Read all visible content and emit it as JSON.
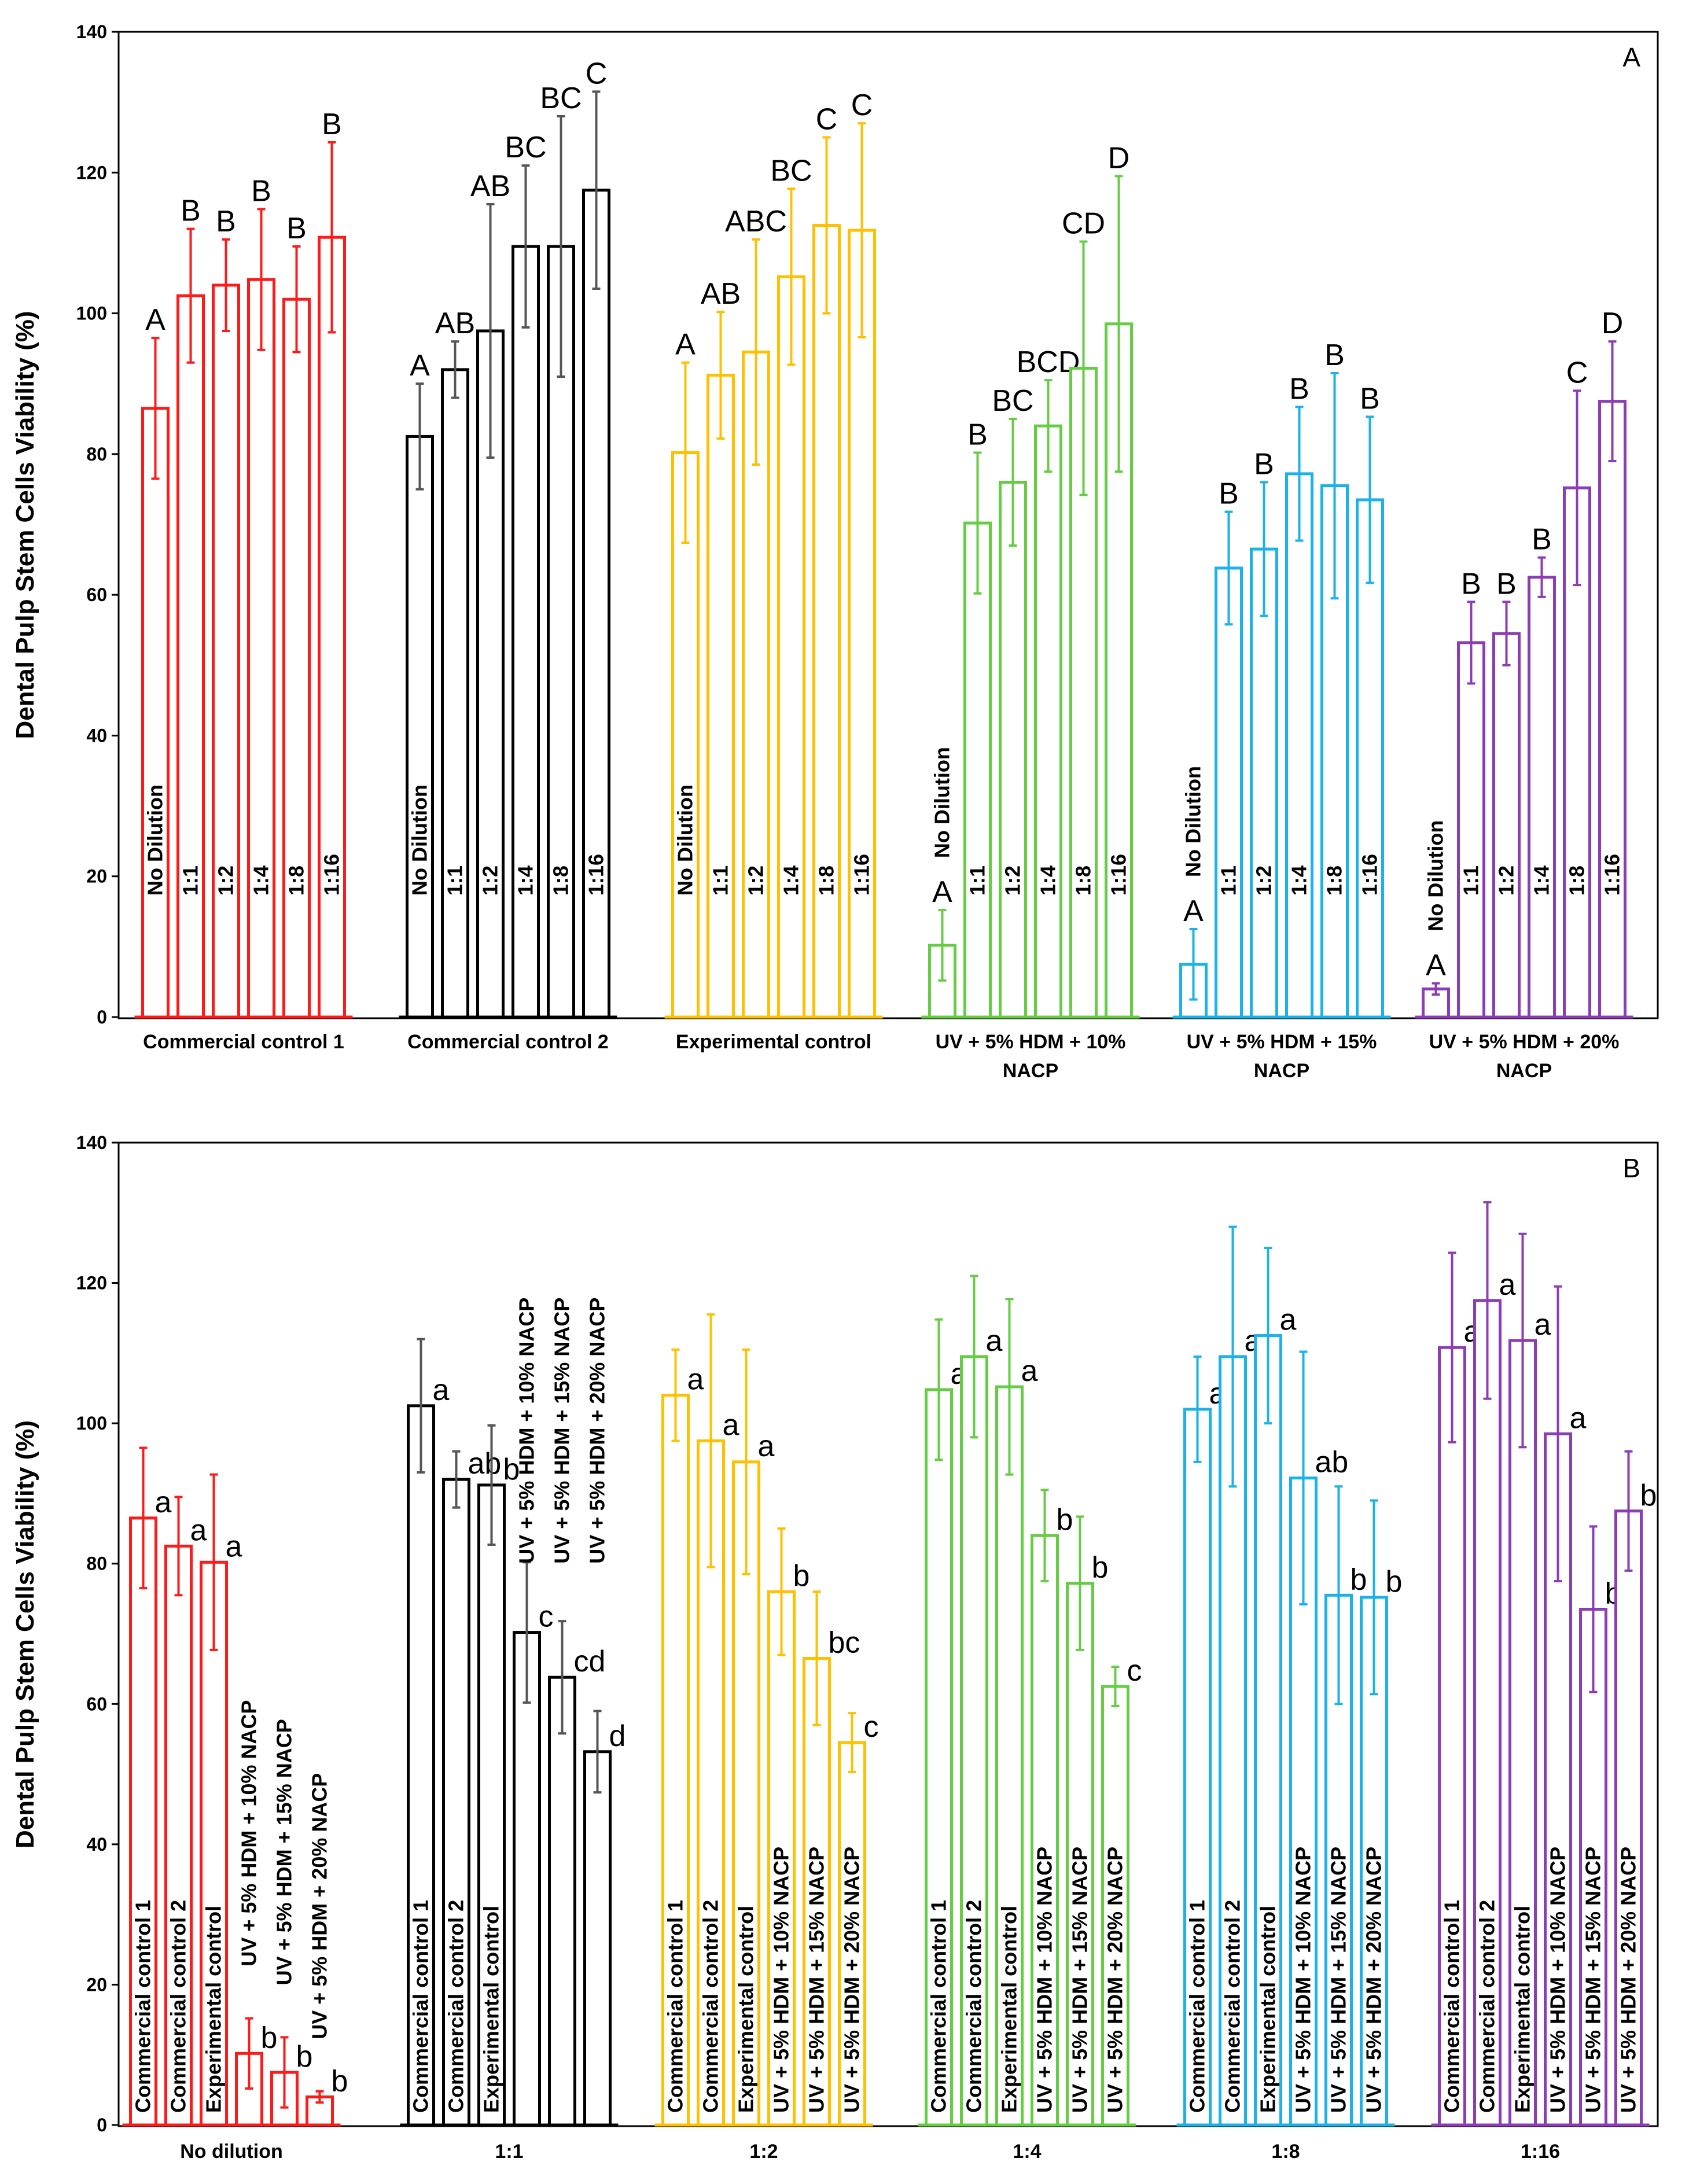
{
  "colors": {
    "red": "#ff1a1a",
    "black": "#000000",
    "black_err": "#555555",
    "yellow": "#ffc000",
    "green": "#66cc44",
    "blue": "#1ab2e8",
    "purple": "#8c3cb4"
  },
  "chart_data": [
    {
      "type": "bar",
      "panel_label": "A",
      "ylabel": "Dental Pulp Stem Cells Viability (%)",
      "ylim": [
        0,
        140
      ],
      "yticks": [
        "0",
        "20",
        "40",
        "60",
        "80",
        "100",
        "120",
        "140"
      ],
      "groups": [
        {
          "label_lines": [
            "Commercial control 1"
          ],
          "color_key": "red",
          "bars": [
            {
              "label": "No Dilution",
              "value": 86.5,
              "err": 10,
              "sig": "A"
            },
            {
              "label": "1:1",
              "value": 102.5,
              "err": 9.5,
              "sig": "B"
            },
            {
              "label": "1:2",
              "value": 104,
              "err": 6.5,
              "sig": "B"
            },
            {
              "label": "1:4",
              "value": 104.8,
              "err": 10,
              "sig": "B"
            },
            {
              "label": "1:8",
              "value": 102,
              "err": 7.5,
              "sig": "B"
            },
            {
              "label": "1:16",
              "value": 110.8,
              "err": 13.5,
              "sig": "B"
            }
          ]
        },
        {
          "label_lines": [
            "Commercial control 2"
          ],
          "color_key": "black",
          "bars": [
            {
              "label": "No Dilution",
              "value": 82.5,
              "err": 7.5,
              "sig": "A"
            },
            {
              "label": "1:1",
              "value": 92,
              "err": 4,
              "sig": "AB"
            },
            {
              "label": "1:2",
              "value": 97.5,
              "err": 18,
              "sig": "AB"
            },
            {
              "label": "1:4",
              "value": 109.5,
              "err": 11.5,
              "sig": "BC"
            },
            {
              "label": "1:8",
              "value": 109.5,
              "err": 18.5,
              "sig": "BC"
            },
            {
              "label": "1:16",
              "value": 117.5,
              "err": 14,
              "sig": "C"
            }
          ]
        },
        {
          "label_lines": [
            "Experimental control"
          ],
          "color_key": "yellow",
          "bars": [
            {
              "label": "No Dilution",
              "value": 80.2,
              "err": 12.8,
              "sig": "A"
            },
            {
              "label": "1:1",
              "value": 91.2,
              "err": 9,
              "sig": "AB"
            },
            {
              "label": "1:2",
              "value": 94.5,
              "err": 16,
              "sig": "ABC"
            },
            {
              "label": "1:4",
              "value": 105.2,
              "err": 12.5,
              "sig": "BC"
            },
            {
              "label": "1:8",
              "value": 112.5,
              "err": 12.5,
              "sig": "C"
            },
            {
              "label": "1:16",
              "value": 111.8,
              "err": 15.2,
              "sig": "C"
            }
          ]
        },
        {
          "label_lines": [
            "UV + 5% HDM + 10%",
            "NACP"
          ],
          "color_key": "green",
          "bars": [
            {
              "label": "No Dilution",
              "value": 10.2,
              "err": 5,
              "sig": "A"
            },
            {
              "label": "1:1",
              "value": 70.2,
              "err": 10,
              "sig": "B"
            },
            {
              "label": "1:2",
              "value": 76,
              "err": 9,
              "sig": "BC"
            },
            {
              "label": "1:4",
              "value": 84,
              "err": 6.5,
              "sig": "BCD"
            },
            {
              "label": "1:8",
              "value": 92.2,
              "err": 18,
              "sig": "CD"
            },
            {
              "label": "1:16",
              "value": 98.5,
              "err": 21,
              "sig": "D"
            }
          ]
        },
        {
          "label_lines": [
            "UV + 5% HDM + 15%",
            "NACP"
          ],
          "color_key": "blue",
          "bars": [
            {
              "label": "No Dilution",
              "value": 7.5,
              "err": 5,
              "sig": "A"
            },
            {
              "label": "1:1",
              "value": 63.8,
              "err": 8,
              "sig": "B"
            },
            {
              "label": "1:2",
              "value": 66.5,
              "err": 9.5,
              "sig": "B"
            },
            {
              "label": "1:4",
              "value": 77.2,
              "err": 9.5,
              "sig": "B"
            },
            {
              "label": "1:8",
              "value": 75.5,
              "err": 16,
              "sig": "B"
            },
            {
              "label": "1:16",
              "value": 73.5,
              "err": 11.8,
              "sig": "B"
            }
          ]
        },
        {
          "label_lines": [
            "UV + 5% HDM + 20%",
            "NACP"
          ],
          "color_key": "purple",
          "bars": [
            {
              "label": "No Dilution",
              "value": 4,
              "err": 0.8,
              "sig": "A"
            },
            {
              "label": "1:1",
              "value": 53.2,
              "err": 5.8,
              "sig": "B"
            },
            {
              "label": "1:2",
              "value": 54.5,
              "err": 4.5,
              "sig": "B"
            },
            {
              "label": "1:4",
              "value": 62.5,
              "err": 2.8,
              "sig": "B"
            },
            {
              "label": "1:8",
              "value": 75.2,
              "err": 13.8,
              "sig": "C"
            },
            {
              "label": "1:16",
              "value": 87.5,
              "err": 8.5,
              "sig": "D"
            }
          ]
        }
      ]
    },
    {
      "type": "bar",
      "panel_label": "B",
      "ylabel": "Dental Pulp Stem Cells Viability (%)",
      "ylim": [
        0,
        140
      ],
      "yticks": [
        "0",
        "20",
        "40",
        "60",
        "80",
        "100",
        "120",
        "140"
      ],
      "groups": [
        {
          "label_lines": [
            "No dilution"
          ],
          "color_key": "red",
          "bars": [
            {
              "label": "Commercial control 1",
              "value": 86.5,
              "err": 10,
              "sig": "a"
            },
            {
              "label": "Commercial control 2",
              "value": 82.5,
              "err": 7,
              "sig": "a"
            },
            {
              "label": "Experimental control",
              "value": 80.2,
              "err": 12.5,
              "sig": "a"
            },
            {
              "label": "UV + 5% HDM + 10% NACP",
              "value": 10.2,
              "err": 5,
              "sig": "b"
            },
            {
              "label": "UV + 5% HDM + 15% NACP",
              "value": 7.5,
              "err": 5,
              "sig": "b"
            },
            {
              "label": "UV + 5% HDM + 20% NACP",
              "value": 4,
              "err": 0.8,
              "sig": "b"
            }
          ]
        },
        {
          "label_lines": [
            "1:1"
          ],
          "color_key": "black",
          "bars": [
            {
              "label": "Commercial control 1",
              "value": 102.5,
              "err": 9.5,
              "sig": "a"
            },
            {
              "label": "Commercial control 2",
              "value": 92,
              "err": 4,
              "sig": "ab"
            },
            {
              "label": "Experimental control",
              "value": 91.2,
              "err": 8.5,
              "sig": "b"
            },
            {
              "label": "UV + 5% HDM + 10% NACP",
              "value": 70.2,
              "err": 10,
              "sig": "c"
            },
            {
              "label": "UV + 5% HDM + 15% NACP",
              "value": 63.8,
              "err": 8,
              "sig": "cd"
            },
            {
              "label": "UV + 5% HDM + 20% NACP",
              "value": 53.2,
              "err": 5.8,
              "sig": "d"
            }
          ]
        },
        {
          "label_lines": [
            "1:2"
          ],
          "color_key": "yellow",
          "bars": [
            {
              "label": "Commercial control 1",
              "value": 104,
              "err": 6.5,
              "sig": "a"
            },
            {
              "label": "Commercial control 2",
              "value": 97.5,
              "err": 18,
              "sig": "a"
            },
            {
              "label": "Experimental control",
              "value": 94.5,
              "err": 16,
              "sig": "a"
            },
            {
              "label": "UV + 5% HDM + 10% NACP",
              "value": 76,
              "err": 9,
              "sig": "b"
            },
            {
              "label": "UV + 5% HDM + 15% NACP",
              "value": 66.5,
              "err": 9.5,
              "sig": "bc"
            },
            {
              "label": "UV + 5% HDM + 20% NACP",
              "value": 54.5,
              "err": 4.2,
              "sig": "c"
            }
          ]
        },
        {
          "label_lines": [
            "1:4"
          ],
          "color_key": "green",
          "bars": [
            {
              "label": "Commercial control 1",
              "value": 104.8,
              "err": 10,
              "sig": "a"
            },
            {
              "label": "Commercial control 2",
              "value": 109.5,
              "err": 11.5,
              "sig": "a"
            },
            {
              "label": "Experimental control",
              "value": 105.2,
              "err": 12.5,
              "sig": "a"
            },
            {
              "label": "UV + 5% HDM + 10% NACP",
              "value": 84,
              "err": 6.5,
              "sig": "b"
            },
            {
              "label": "UV + 5% HDM + 15% NACP",
              "value": 77.2,
              "err": 9.5,
              "sig": "b"
            },
            {
              "label": "UV + 5% HDM + 20% NACP",
              "value": 62.5,
              "err": 2.8,
              "sig": "c"
            }
          ]
        },
        {
          "label_lines": [
            "1:8"
          ],
          "color_key": "blue",
          "bars": [
            {
              "label": "Commercial control 1",
              "value": 102,
              "err": 7.5,
              "sig": "a"
            },
            {
              "label": "Commercial control 2",
              "value": 109.5,
              "err": 18.5,
              "sig": "a"
            },
            {
              "label": "Experimental control",
              "value": 112.5,
              "err": 12.5,
              "sig": "a"
            },
            {
              "label": "UV + 5% HDM + 10% NACP",
              "value": 92.2,
              "err": 18,
              "sig": "ab"
            },
            {
              "label": "UV + 5% HDM + 15% NACP",
              "value": 75.5,
              "err": 15.5,
              "sig": "b"
            },
            {
              "label": "UV + 5% HDM + 20% NACP",
              "value": 75.2,
              "err": 13.8,
              "sig": "b"
            }
          ]
        },
        {
          "label_lines": [
            "1:16"
          ],
          "color_key": "purple",
          "bars": [
            {
              "label": "Commercial control 1",
              "value": 110.8,
              "err": 13.5,
              "sig": "a"
            },
            {
              "label": "Commercial control 2",
              "value": 117.5,
              "err": 14,
              "sig": "a"
            },
            {
              "label": "Experimental control",
              "value": 111.8,
              "err": 15.2,
              "sig": "a"
            },
            {
              "label": "UV + 5% HDM + 10% NACP",
              "value": 98.5,
              "err": 21,
              "sig": "a"
            },
            {
              "label": "UV + 5% HDM + 15% NACP",
              "value": 73.5,
              "err": 11.8,
              "sig": "b"
            },
            {
              "label": "UV + 5% HDM + 20% NACP",
              "value": 87.5,
              "err": 8.5,
              "sig": "b"
            }
          ]
        }
      ]
    }
  ]
}
